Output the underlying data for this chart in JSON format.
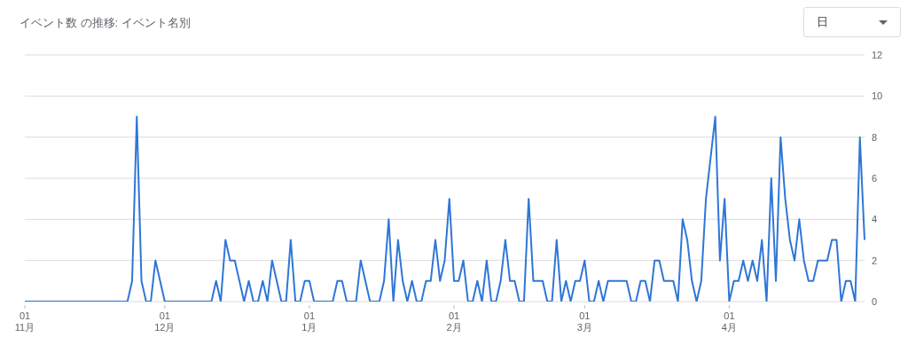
{
  "chart_data": {
    "type": "line",
    "title": "イベント数 の推移: イベント名別",
    "annotations": [
      "日"
    ],
    "categories": [
      "01\n11月",
      null,
      null,
      null,
      null,
      null,
      null,
      null,
      null,
      null,
      null,
      null,
      null,
      null,
      null,
      null,
      null,
      null,
      null,
      null,
      null,
      null,
      null,
      null,
      null,
      null,
      null,
      null,
      null,
      null,
      "01\n12月",
      null,
      null,
      null,
      null,
      null,
      null,
      null,
      null,
      null,
      null,
      null,
      null,
      null,
      null,
      null,
      null,
      null,
      null,
      null,
      null,
      null,
      null,
      null,
      null,
      null,
      null,
      null,
      null,
      null,
      null,
      "01\n1月",
      null,
      null,
      null,
      null,
      null,
      null,
      null,
      null,
      null,
      null,
      null,
      null,
      null,
      null,
      null,
      null,
      null,
      null,
      null,
      null,
      null,
      null,
      null,
      null,
      null,
      null,
      null,
      null,
      null,
      null,
      "01\n2月",
      null,
      null,
      null,
      null,
      null,
      null,
      null,
      null,
      null,
      null,
      null,
      null,
      null,
      null,
      null,
      null,
      null,
      null,
      null,
      null,
      null,
      null,
      null,
      null,
      null,
      null,
      null,
      "01\n3月",
      null,
      null,
      null,
      null,
      null,
      null,
      null,
      null,
      null,
      null,
      null,
      null,
      null,
      null,
      null,
      null,
      null,
      null,
      null,
      null,
      null,
      null,
      null,
      null,
      null,
      null,
      null,
      null,
      null,
      null,
      "01\n4月",
      null,
      null,
      null,
      null,
      null,
      null,
      null,
      null,
      null,
      null,
      null,
      null,
      null,
      null,
      null,
      null,
      null,
      null,
      null,
      null,
      null,
      null,
      null,
      null,
      null,
      null,
      null,
      null,
      null
    ],
    "series": [
      {
        "color": "#2f76d6",
        "values": [
          0,
          0,
          0,
          0,
          0,
          0,
          0,
          0,
          0,
          0,
          0,
          0,
          0,
          0,
          0,
          0,
          0,
          0,
          0,
          0,
          0,
          0,
          0,
          1,
          9,
          1,
          0,
          0,
          2,
          1,
          0,
          0,
          0,
          0,
          0,
          0,
          0,
          0,
          0,
          0,
          0,
          1,
          0,
          3,
          2,
          2,
          1,
          0,
          1,
          0,
          0,
          1,
          0,
          2,
          1,
          0,
          0,
          3,
          0,
          0,
          1,
          1,
          0,
          0,
          0,
          0,
          0,
          1,
          1,
          0,
          0,
          0,
          2,
          1,
          0,
          0,
          0,
          1,
          4,
          0,
          3,
          1,
          0,
          1,
          0,
          0,
          1,
          1,
          3,
          1,
          2,
          5,
          1,
          1,
          2,
          0,
          0,
          1,
          0,
          2,
          0,
          0,
          1,
          3,
          1,
          1,
          0,
          0,
          5,
          1,
          1,
          1,
          0,
          0,
          3,
          0,
          1,
          0,
          1,
          1,
          2,
          0,
          0,
          1,
          0,
          1,
          1,
          1,
          1,
          1,
          0,
          0,
          1,
          1,
          0,
          2,
          2,
          1,
          1,
          1,
          0,
          4,
          3,
          1,
          0,
          1,
          5,
          7,
          9,
          2,
          5,
          0,
          1,
          1,
          2,
          1,
          2,
          1,
          3,
          0,
          6,
          1,
          8,
          5,
          3,
          2,
          4,
          2,
          1,
          1,
          2,
          2,
          2,
          3,
          3,
          0,
          1,
          1,
          0,
          8,
          3
        ]
      }
    ],
    "ylim": [
      0,
      12
    ],
    "yticks": [
      0,
      2,
      4,
      6,
      8,
      10,
      12
    ],
    "grid": "y",
    "line_style": "solid"
  }
}
